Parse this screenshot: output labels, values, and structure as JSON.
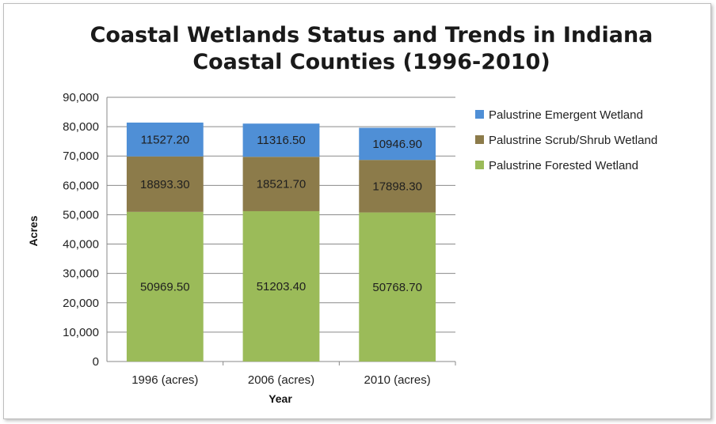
{
  "chart_data": {
    "type": "bar",
    "stacked": true,
    "title": "Coastal Wetlands Status and Trends in Indiana Coastal Counties (1996-2010)",
    "title_lines": [
      "Coastal Wetlands Status and Trends in Indiana",
      "Coastal Counties (1996-2010)"
    ],
    "xlabel": "Year",
    "ylabel": "Acres",
    "ylim": [
      0,
      90000
    ],
    "yticks": [
      0,
      10000,
      20000,
      30000,
      40000,
      50000,
      60000,
      70000,
      80000,
      90000
    ],
    "ytick_labels": [
      "0",
      "10,000",
      "20,000",
      "30,000",
      "40,000",
      "50,000",
      "60,000",
      "70,000",
      "80,000",
      "90,000"
    ],
    "grid": true,
    "legend_position": "right",
    "categories": [
      "1996 (acres)",
      "2006 (acres)",
      "2010 (acres)"
    ],
    "series": [
      {
        "name": "Palustrine Forested Wetland",
        "color": "#9bbb59",
        "values": [
          50969.5,
          51203.4,
          50768.7
        ],
        "labels": [
          "50969.50",
          "51203.40",
          "50768.70"
        ]
      },
      {
        "name": "Palustrine Scrub/Shrub Wetland",
        "color": "#8c7b4a",
        "values": [
          18893.3,
          18521.7,
          17898.3
        ],
        "labels": [
          "18893.30",
          "18521.70",
          "17898.30"
        ]
      },
      {
        "name": "Palustrine Emergent Wetland",
        "color": "#4f8fd6",
        "values": [
          11527.2,
          11316.5,
          10946.9
        ],
        "labels": [
          "11527.20",
          "11316.50",
          "10946.90"
        ]
      }
    ],
    "legend_order": [
      "Palustrine Emergent Wetland",
      "Palustrine Scrub/Shrub Wetland",
      "Palustrine Forested Wetland"
    ]
  }
}
